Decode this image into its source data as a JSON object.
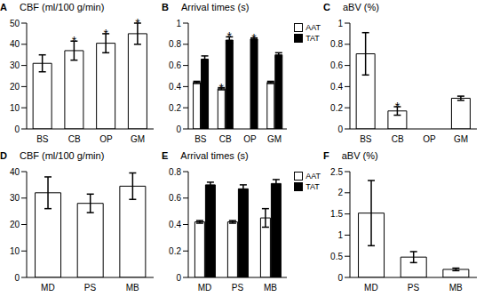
{
  "chart_data": [
    {
      "type": "bar",
      "panel_label": "A",
      "title": "CBF (ml/100 g/min)",
      "categories": [
        "BS",
        "CB",
        "OP",
        "GM"
      ],
      "ylim": [
        0,
        50
      ],
      "yticks": [
        0,
        10,
        20,
        30,
        40,
        50
      ],
      "series": [
        {
          "color": "#ffffff",
          "values": [
            31,
            37,
            40.5,
            45
          ],
          "errors": [
            4,
            4.5,
            4.5,
            5
          ],
          "significance": [
            null,
            "*",
            "*",
            "*"
          ]
        }
      ]
    },
    {
      "type": "bar",
      "panel_label": "B",
      "title": "Arrival times (s)",
      "categories": [
        "BS",
        "CB",
        "OP",
        "GM"
      ],
      "ylim": [
        0,
        1
      ],
      "yticks": [
        0,
        0.2,
        0.4,
        0.6,
        0.8,
        1
      ],
      "legend": "upper right",
      "series": [
        {
          "name": "AAT",
          "color": "#ffffff",
          "values": [
            0.44,
            0.38,
            null,
            0.44
          ],
          "errors": [
            0.01,
            0.01,
            null,
            0.01
          ],
          "significance": [
            null,
            "*",
            null,
            null
          ]
        },
        {
          "name": "TAT",
          "color": "#000000",
          "values": [
            0.66,
            0.84,
            0.85,
            0.7
          ],
          "errors": [
            0.03,
            0.03,
            0.01,
            0.02
          ],
          "significance": [
            null,
            "*",
            "*",
            null
          ]
        }
      ]
    },
    {
      "type": "bar",
      "panel_label": "C",
      "title": "aBV (%)",
      "categories": [
        "BS",
        "CB",
        "OP",
        "GM"
      ],
      "ylim": [
        0,
        1
      ],
      "yticks": [
        0,
        0.2,
        0.4,
        0.6,
        0.8,
        1
      ],
      "series": [
        {
          "color": "#ffffff",
          "values": [
            0.71,
            0.17,
            null,
            0.29
          ],
          "errors": [
            0.2,
            0.04,
            null,
            0.02
          ],
          "significance": [
            null,
            "*",
            null,
            null
          ]
        }
      ]
    },
    {
      "type": "bar",
      "panel_label": "D",
      "title": "CBF (ml/100 g/min)",
      "categories": [
        "MD",
        "PS",
        "MB"
      ],
      "ylim": [
        0,
        40
      ],
      "yticks": [
        0,
        10,
        20,
        30,
        40
      ],
      "series": [
        {
          "color": "#ffffff",
          "values": [
            32,
            28,
            34.5
          ],
          "errors": [
            6,
            3.5,
            5
          ]
        }
      ]
    },
    {
      "type": "bar",
      "panel_label": "E",
      "title": "Arrival times (s)",
      "categories": [
        "MD",
        "PS",
        "MB"
      ],
      "ylim": [
        0,
        0.8
      ],
      "yticks": [
        0,
        0.2,
        0.4,
        0.6,
        0.8
      ],
      "legend": "upper right",
      "series": [
        {
          "name": "AAT",
          "color": "#ffffff",
          "values": [
            0.42,
            0.42,
            0.45
          ],
          "errors": [
            0.01,
            0.01,
            0.07
          ]
        },
        {
          "name": "TAT",
          "color": "#000000",
          "values": [
            0.7,
            0.67,
            0.71
          ],
          "errors": [
            0.02,
            0.03,
            0.03
          ]
        }
      ]
    },
    {
      "type": "bar",
      "panel_label": "F",
      "title": "aBV (%)",
      "categories": [
        "MD",
        "PS",
        "MB"
      ],
      "ylim": [
        0,
        2.5
      ],
      "yticks": [
        0,
        0.5,
        1,
        1.5,
        2,
        2.5
      ],
      "series": [
        {
          "color": "#ffffff",
          "values": [
            1.52,
            0.48,
            0.19
          ],
          "errors": [
            0.77,
            0.13,
            0.03
          ]
        }
      ]
    }
  ]
}
